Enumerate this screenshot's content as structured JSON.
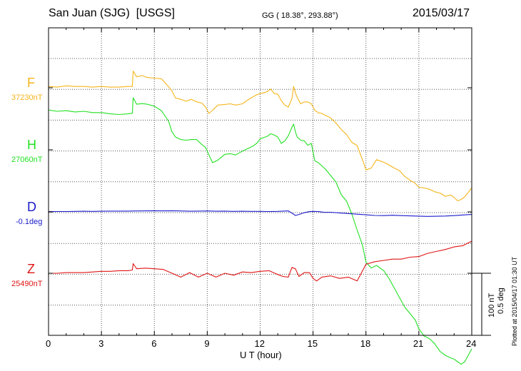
{
  "header": {
    "station": "San Juan (SJG)",
    "source": "[USGS]",
    "coords": "GG ( 18.38°, 293.88°)",
    "date": "2015/03/17"
  },
  "footer": {
    "plotted": "Plotted at 2015/04/17 01:30 UT",
    "scale_nt": "100 nT",
    "scale_deg": "0.5 deg"
  },
  "chart_data": {
    "type": "line",
    "xlabel": "U T (hour)",
    "ylabel": "",
    "xlim": [
      0,
      24
    ],
    "xticks": [
      0,
      3,
      6,
      9,
      12,
      15,
      18,
      21,
      24
    ],
    "grid": true,
    "series": [
      {
        "name": "F",
        "baseline_label": "37230nT",
        "baseline_value": 37230,
        "unit": "nT",
        "color": "#f5b51a",
        "x": [
          0,
          0.5,
          1,
          1.5,
          2,
          2.5,
          3,
          3.5,
          4,
          4.5,
          4.75,
          4.8,
          5,
          5.3,
          5.6,
          6,
          6.4,
          6.8,
          7,
          7.2,
          7.5,
          7.8,
          8.1,
          8.4,
          8.7,
          8.9,
          9.1,
          9.3,
          9.6,
          10,
          10.3,
          10.6,
          11,
          11.3,
          11.6,
          11.8,
          12,
          12.2,
          12.4,
          12.6,
          12.8,
          13,
          13.2,
          13.4,
          13.6,
          13.8,
          13.9,
          14,
          14.1,
          14.3,
          14.5,
          14.7,
          14.9,
          15.1,
          15.3,
          15.5,
          15.7,
          16,
          16.3,
          16.6,
          16.9,
          17.2,
          17.5,
          17.8,
          18,
          18.3,
          18.6,
          19,
          19.3,
          19.6,
          19.9,
          20.2,
          20.5,
          20.8,
          21,
          21.3,
          21.6,
          21.9,
          22.2,
          22.5,
          22.8,
          23,
          23.2,
          23.4,
          23.6,
          23.8,
          24
        ],
        "y": [
          37232,
          37231,
          37233,
          37232,
          37232,
          37231,
          37232,
          37231,
          37231,
          37232,
          37232,
          37256,
          37247,
          37249,
          37246,
          37245,
          37244,
          37232,
          37225,
          37214,
          37212,
          37209,
          37212,
          37208,
          37206,
          37200,
          37190,
          37195,
          37203,
          37204,
          37205,
          37203,
          37205,
          37211,
          37216,
          37219,
          37221,
          37222,
          37224,
          37228,
          37221,
          37220,
          37210,
          37203,
          37200,
          37213,
          37232,
          37222,
          37215,
          37205,
          37208,
          37208,
          37205,
          37195,
          37191,
          37190,
          37187,
          37183,
          37175,
          37165,
          37157,
          37145,
          37140,
          37118,
          37102,
          37105,
          37118,
          37114,
          37110,
          37105,
          37101,
          37092,
          37086,
          37081,
          37075,
          37074,
          37072,
          37068,
          37066,
          37061,
          37063,
          37059,
          37054,
          37056,
          37060,
          37067,
          37074
        ]
      },
      {
        "name": "H",
        "baseline_label": "27060nT",
        "baseline_value": 27060,
        "unit": "nT",
        "color": "#22e022",
        "x": [
          0,
          0.5,
          1,
          1.5,
          2,
          2.5,
          3,
          3.5,
          4,
          4.5,
          4.75,
          4.8,
          5,
          5.3,
          5.6,
          6,
          6.4,
          6.8,
          7,
          7.2,
          7.5,
          7.8,
          8.1,
          8.4,
          8.7,
          8.9,
          9.1,
          9.3,
          9.6,
          10,
          10.3,
          10.6,
          11,
          11.3,
          11.6,
          11.8,
          12,
          12.2,
          12.4,
          12.6,
          12.8,
          13,
          13.2,
          13.4,
          13.6,
          13.8,
          13.9,
          14,
          14.1,
          14.3,
          14.5,
          14.7,
          14.9,
          15.1,
          15.3,
          15.5,
          15.7,
          16,
          16.3,
          16.6,
          16.9,
          17.2,
          17.5,
          17.8,
          18,
          18.3,
          18.6,
          19,
          19.3,
          19.6,
          19.9,
          20.2,
          20.5,
          20.8,
          21,
          21.3,
          21.6,
          21.9,
          22.2,
          22.5,
          22.8,
          23,
          23.2,
          23.4,
          23.6,
          23.8,
          24
        ],
        "y": [
          27122,
          27120,
          27121,
          27119,
          27120,
          27118,
          27118,
          27116,
          27115,
          27116,
          27117,
          27141,
          27131,
          27132,
          27131,
          27128,
          27121,
          27105,
          27088,
          27080,
          27076,
          27075,
          27076,
          27076,
          27068,
          27064,
          27052,
          27040,
          27044,
          27053,
          27054,
          27052,
          27058,
          27062,
          27066,
          27070,
          27077,
          27079,
          27081,
          27085,
          27083,
          27080,
          27070,
          27074,
          27082,
          27095,
          27100,
          27088,
          27080,
          27075,
          27074,
          27067,
          27070,
          27043,
          27040,
          27035,
          27030,
          27020,
          27010,
          26990,
          26980,
          26960,
          26935,
          26912,
          26885,
          26876,
          26880,
          26872,
          26860,
          26845,
          26830,
          26815,
          26805,
          26795,
          26781,
          26770,
          26766,
          26758,
          26746,
          26740,
          26736,
          26734,
          26730,
          26726,
          26730,
          26740,
          26750
        ]
      },
      {
        "name": "D",
        "baseline_label": "-0.1deg",
        "baseline_value": -0.1,
        "unit": "deg",
        "color": "#1a1acc",
        "x": [
          0,
          0.5,
          1,
          1.5,
          2,
          2.5,
          3,
          3.5,
          4,
          4.5,
          5,
          5.5,
          6,
          6.5,
          7,
          7.5,
          8,
          8.5,
          9,
          9.5,
          10,
          10.5,
          11,
          11.5,
          12,
          12.5,
          13,
          13.3,
          13.6,
          13.9,
          14,
          14.2,
          14.5,
          14.8,
          15,
          15.3,
          15.6,
          16,
          16.5,
          17,
          17.5,
          18,
          18.5,
          19,
          19.5,
          20,
          20.5,
          21,
          21.5,
          22,
          22.5,
          23,
          23.5,
          24
        ],
        "y": [
          -0.098,
          -0.097,
          -0.097,
          -0.096,
          -0.095,
          -0.096,
          -0.095,
          -0.094,
          -0.094,
          -0.094,
          -0.093,
          -0.092,
          -0.091,
          -0.092,
          -0.091,
          -0.093,
          -0.095,
          -0.094,
          -0.093,
          -0.095,
          -0.094,
          -0.096,
          -0.095,
          -0.096,
          -0.096,
          -0.097,
          -0.096,
          -0.094,
          -0.092,
          -0.118,
          -0.128,
          -0.12,
          -0.106,
          -0.098,
          -0.096,
          -0.098,
          -0.102,
          -0.103,
          -0.108,
          -0.113,
          -0.118,
          -0.123,
          -0.128,
          -0.129,
          -0.126,
          -0.129,
          -0.131,
          -0.133,
          -0.135,
          -0.134,
          -0.132,
          -0.129,
          -0.124,
          -0.12
        ]
      },
      {
        "name": "Z",
        "baseline_label": "25490nT",
        "baseline_value": 25490,
        "unit": "nT",
        "color": "#e01515",
        "x": [
          0,
          0.5,
          1,
          1.5,
          2,
          2.5,
          3,
          3.5,
          4,
          4.5,
          4.75,
          4.8,
          5,
          5.5,
          6,
          6.5,
          7,
          7.5,
          8,
          8.5,
          9,
          9.5,
          10,
          10.5,
          11,
          11.5,
          12,
          12.5,
          13,
          13.3,
          13.6,
          13.8,
          14,
          14.2,
          14.5,
          14.8,
          15,
          15.2,
          15.5,
          16,
          16.5,
          17,
          17.5,
          18,
          18.5,
          19,
          19.5,
          20,
          20.5,
          21,
          21.5,
          22,
          22.5,
          23,
          23.5,
          24
        ],
        "y": [
          25490,
          25490,
          25491,
          25491,
          25491,
          25492,
          25493,
          25493,
          25494,
          25494,
          25495,
          25505,
          25497,
          25498,
          25497,
          25496,
          25490,
          25484,
          25491,
          25484,
          25490,
          25484,
          25490,
          25487,
          25492,
          25491,
          25493,
          25494,
          25488,
          25485,
          25484,
          25499,
          25497,
          25485,
          25491,
          25491,
          25482,
          25478,
          25484,
          25486,
          25482,
          25484,
          25478,
          25504,
          25508,
          25510,
          25512,
          25512,
          25515,
          25516,
          25521,
          25524,
          25527,
          25531,
          25533,
          25540
        ]
      }
    ],
    "scale_bar": {
      "nT": 100,
      "deg": 0.5
    }
  }
}
